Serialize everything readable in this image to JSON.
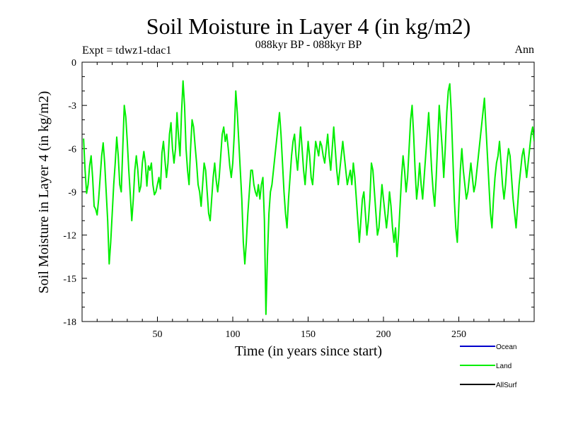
{
  "chart_data": {
    "type": "line",
    "title": "Soil Moisture in Layer 4 (in kg/m2)",
    "subtitle": "088kyr BP - 088kyr BP",
    "experiment_label": "Expt = tdwz1-tdac1",
    "period_label": "Ann",
    "xlabel": "Time (in years since start)",
    "ylabel": "Soil Moisture in Layer 4 (in kg/m2)",
    "xlim": [
      0,
      300
    ],
    "ylim": [
      -18,
      0
    ],
    "xticks": [
      50,
      100,
      150,
      200,
      250
    ],
    "xtick_labels": [
      "50",
      "100",
      "150",
      "200",
      "250"
    ],
    "yticks": [
      0,
      -3,
      -6,
      -9,
      -12,
      -15,
      -18
    ],
    "ytick_labels": [
      "0",
      "-3",
      "-6",
      "-9",
      "-12",
      "-15",
      "-18"
    ],
    "colors": {
      "Ocean": "#0000cc",
      "Land": "#00ee00",
      "AllSurf": "#000000"
    },
    "legend": [
      {
        "name": "Ocean",
        "label": "Ocean",
        "color": "#0000cc"
      },
      {
        "name": "Land",
        "label": "Land",
        "color": "#00ee00"
      },
      {
        "name": "AllSurf",
        "label": "AllSurf",
        "color": "#000000"
      }
    ],
    "series": [
      {
        "name": "Land",
        "color": "#00ee00",
        "x_start": 1,
        "x_step": 1,
        "values": [
          -5.3,
          -7.5,
          -9.1,
          -8.5,
          -7.2,
          -6.5,
          -8.0,
          -10.0,
          -10.2,
          -10.6,
          -9.5,
          -8.0,
          -6.5,
          -5.6,
          -7.0,
          -9.0,
          -11.0,
          -14.0,
          -12.5,
          -10.5,
          -8.5,
          -7.0,
          -5.2,
          -6.5,
          -8.5,
          -9.0,
          -6.0,
          -3.0,
          -3.8,
          -5.5,
          -7.5,
          -9.2,
          -11.0,
          -9.5,
          -7.5,
          -6.5,
          -7.5,
          -9.0,
          -8.6,
          -7.0,
          -6.2,
          -7.0,
          -8.6,
          -7.2,
          -7.5,
          -7.0,
          -8.5,
          -9.2,
          -9.0,
          -8.5,
          -8.0,
          -8.8,
          -6.3,
          -5.5,
          -6.8,
          -8.0,
          -7.0,
          -5.0,
          -4.2,
          -6.0,
          -7.0,
          -6.0,
          -3.5,
          -5.2,
          -6.5,
          -3.5,
          -1.3,
          -3.0,
          -6.0,
          -7.5,
          -8.5,
          -6.0,
          -4.0,
          -4.5,
          -5.8,
          -7.0,
          -8.5,
          -9.0,
          -10.0,
          -8.5,
          -7.0,
          -7.5,
          -9.0,
          -10.5,
          -11.0,
          -9.5,
          -8.0,
          -7.0,
          -8.2,
          -9.0,
          -8.0,
          -6.5,
          -5.0,
          -4.5,
          -5.5,
          -5.0,
          -6.0,
          -7.2,
          -8.0,
          -7.0,
          -5.0,
          -2.0,
          -3.5,
          -5.5,
          -7.5,
          -9.5,
          -12.5,
          -14.0,
          -12.5,
          -10.5,
          -9.0,
          -7.5,
          -7.5,
          -8.5,
          -9.0,
          -9.3,
          -8.5,
          -9.5,
          -8.5,
          -8.0,
          -11.0,
          -17.5,
          -13.5,
          -10.5,
          -9.0,
          -8.5,
          -7.5,
          -6.5,
          -5.5,
          -4.5,
          -3.5,
          -5.0,
          -7.0,
          -9.0,
          -10.5,
          -11.5,
          -9.5,
          -8.0,
          -6.5,
          -5.5,
          -5.0,
          -6.5,
          -7.5,
          -6.0,
          -4.5,
          -6.0,
          -7.5,
          -8.5,
          -7.0,
          -5.5,
          -6.5,
          -8.0,
          -8.5,
          -7.0,
          -5.5,
          -6.0,
          -6.5,
          -5.5,
          -5.8,
          -6.5,
          -7.0,
          -6.0,
          -5.0,
          -6.5,
          -7.5,
          -6.0,
          -4.5,
          -6.0,
          -7.5,
          -8.5,
          -7.5,
          -6.5,
          -5.5,
          -6.5,
          -7.5,
          -8.5,
          -8.0,
          -7.5,
          -8.5,
          -7.0,
          -8.0,
          -9.5,
          -11.0,
          -12.5,
          -11.0,
          -9.5,
          -9.0,
          -10.5,
          -12.0,
          -11.0,
          -9.5,
          -7.0,
          -7.5,
          -9.0,
          -10.5,
          -12.0,
          -11.5,
          -10.0,
          -8.5,
          -9.5,
          -10.5,
          -11.5,
          -10.5,
          -9.0,
          -10.0,
          -11.5,
          -12.5,
          -11.5,
          -13.5,
          -12.0,
          -10.0,
          -8.0,
          -6.5,
          -7.5,
          -9.0,
          -8.0,
          -6.0,
          -4.0,
          -3.0,
          -5.0,
          -7.5,
          -9.5,
          -8.5,
          -7.0,
          -8.5,
          -9.5,
          -8.0,
          -6.5,
          -5.0,
          -3.5,
          -5.5,
          -7.5,
          -9.0,
          -10.0,
          -8.0,
          -5.5,
          -3.0,
          -4.5,
          -6.0,
          -8.0,
          -6.0,
          -3.5,
          -2.0,
          -1.5,
          -3.5,
          -6.5,
          -9.5,
          -11.5,
          -12.5,
          -10.0,
          -7.5,
          -6.0,
          -7.5,
          -8.5,
          -9.5,
          -9.0,
          -8.0,
          -7.0,
          -8.0,
          -9.0,
          -8.5,
          -7.5,
          -6.5,
          -5.5,
          -4.5,
          -3.5,
          -2.5,
          -4.5,
          -6.5,
          -8.5,
          -10.5,
          -11.5,
          -9.5,
          -8.0,
          -7.0,
          -6.5,
          -5.5,
          -7.0,
          -8.5,
          -9.5,
          -8.5,
          -7.0,
          -6.0,
          -6.5,
          -8.0,
          -9.5,
          -10.5,
          -11.5,
          -10.0,
          -8.5,
          -7.5,
          -6.5,
          -6.0,
          -7.0,
          -8.0,
          -7.0,
          -6.0,
          -5.0,
          -4.5,
          -5.5
        ]
      }
    ]
  }
}
